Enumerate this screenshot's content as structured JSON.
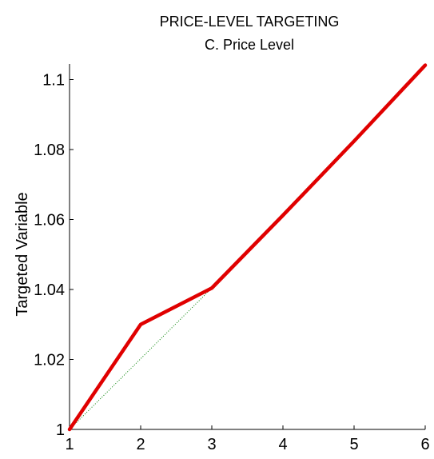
{
  "chart_data": {
    "type": "line",
    "title": "PRICE-LEVEL TARGETING",
    "subtitle": "C. Price Level",
    "xlabel": "",
    "ylabel": "Targeted Variable",
    "xlim": [
      1,
      6
    ],
    "ylim": [
      1,
      1.104
    ],
    "x_ticks": [
      1,
      2,
      3,
      4,
      5,
      6
    ],
    "y_ticks": [
      1,
      1.02,
      1.04,
      1.06,
      1.08,
      1.1
    ],
    "y_tick_labels": [
      "1",
      "1.02",
      "1.04",
      "1.06",
      "1.08",
      "1.1"
    ],
    "grid": false,
    "series": [
      {
        "color": "#e00000",
        "style": "solid-thick",
        "x": [
          1,
          2,
          3,
          4,
          5,
          6
        ],
        "y": [
          1.0,
          1.03,
          1.0404,
          1.0612,
          1.0824,
          1.1041
        ]
      },
      {
        "color": "#008000",
        "style": "dotted-thin",
        "x": [
          1,
          2,
          3
        ],
        "y": [
          1.0,
          1.0202,
          1.0404
        ]
      }
    ]
  }
}
